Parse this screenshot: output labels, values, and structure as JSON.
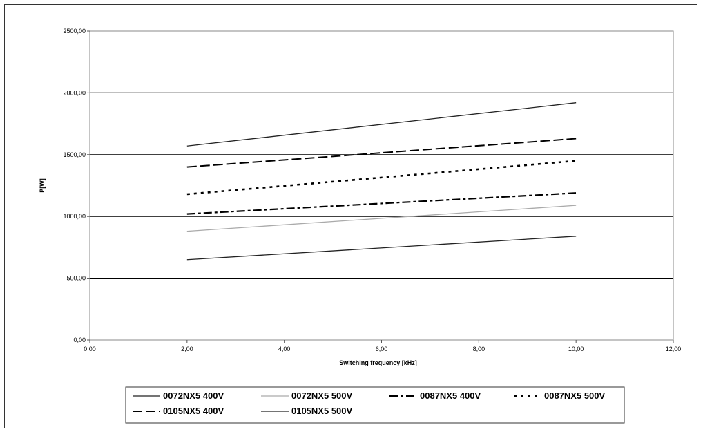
{
  "chart_data": {
    "type": "line",
    "xlabel": "Switching frequency [kHz]",
    "ylabel": "P[W]",
    "xlim": [
      0,
      12
    ],
    "ylim": [
      0,
      2500
    ],
    "xticks": [
      "0,00",
      "2,00",
      "4,00",
      "6,00",
      "8,00",
      "10,00",
      "12,00"
    ],
    "yticks": [
      "0,00",
      "500,00",
      "1000,00",
      "1500,00",
      "2000,00",
      "2500,00"
    ],
    "grid": "horizontal",
    "legend_position": "bottom",
    "series": [
      {
        "name": "0072NX5 400V",
        "x": [
          2,
          10
        ],
        "y": [
          650,
          840
        ],
        "color": "#222222",
        "dash": "solid"
      },
      {
        "name": "0072NX5 500V",
        "x": [
          2,
          10
        ],
        "y": [
          880,
          1090
        ],
        "color": "#aaaaaa",
        "dash": "solid"
      },
      {
        "name": "0087NX5 400V",
        "x": [
          2,
          10
        ],
        "y": [
          1020,
          1190
        ],
        "color": "#000000",
        "dash": "dashdot"
      },
      {
        "name": "0087NX5 500V",
        "x": [
          2,
          10
        ],
        "y": [
          1180,
          1450
        ],
        "color": "#000000",
        "dash": "dotted"
      },
      {
        "name": "0105NX5 400V",
        "x": [
          2,
          10
        ],
        "y": [
          1400,
          1630
        ],
        "color": "#000000",
        "dash": "dashed"
      },
      {
        "name": "0105NX5 500V",
        "x": [
          2,
          10
        ],
        "y": [
          1570,
          1920
        ],
        "color": "#222222",
        "dash": "solid"
      }
    ]
  }
}
